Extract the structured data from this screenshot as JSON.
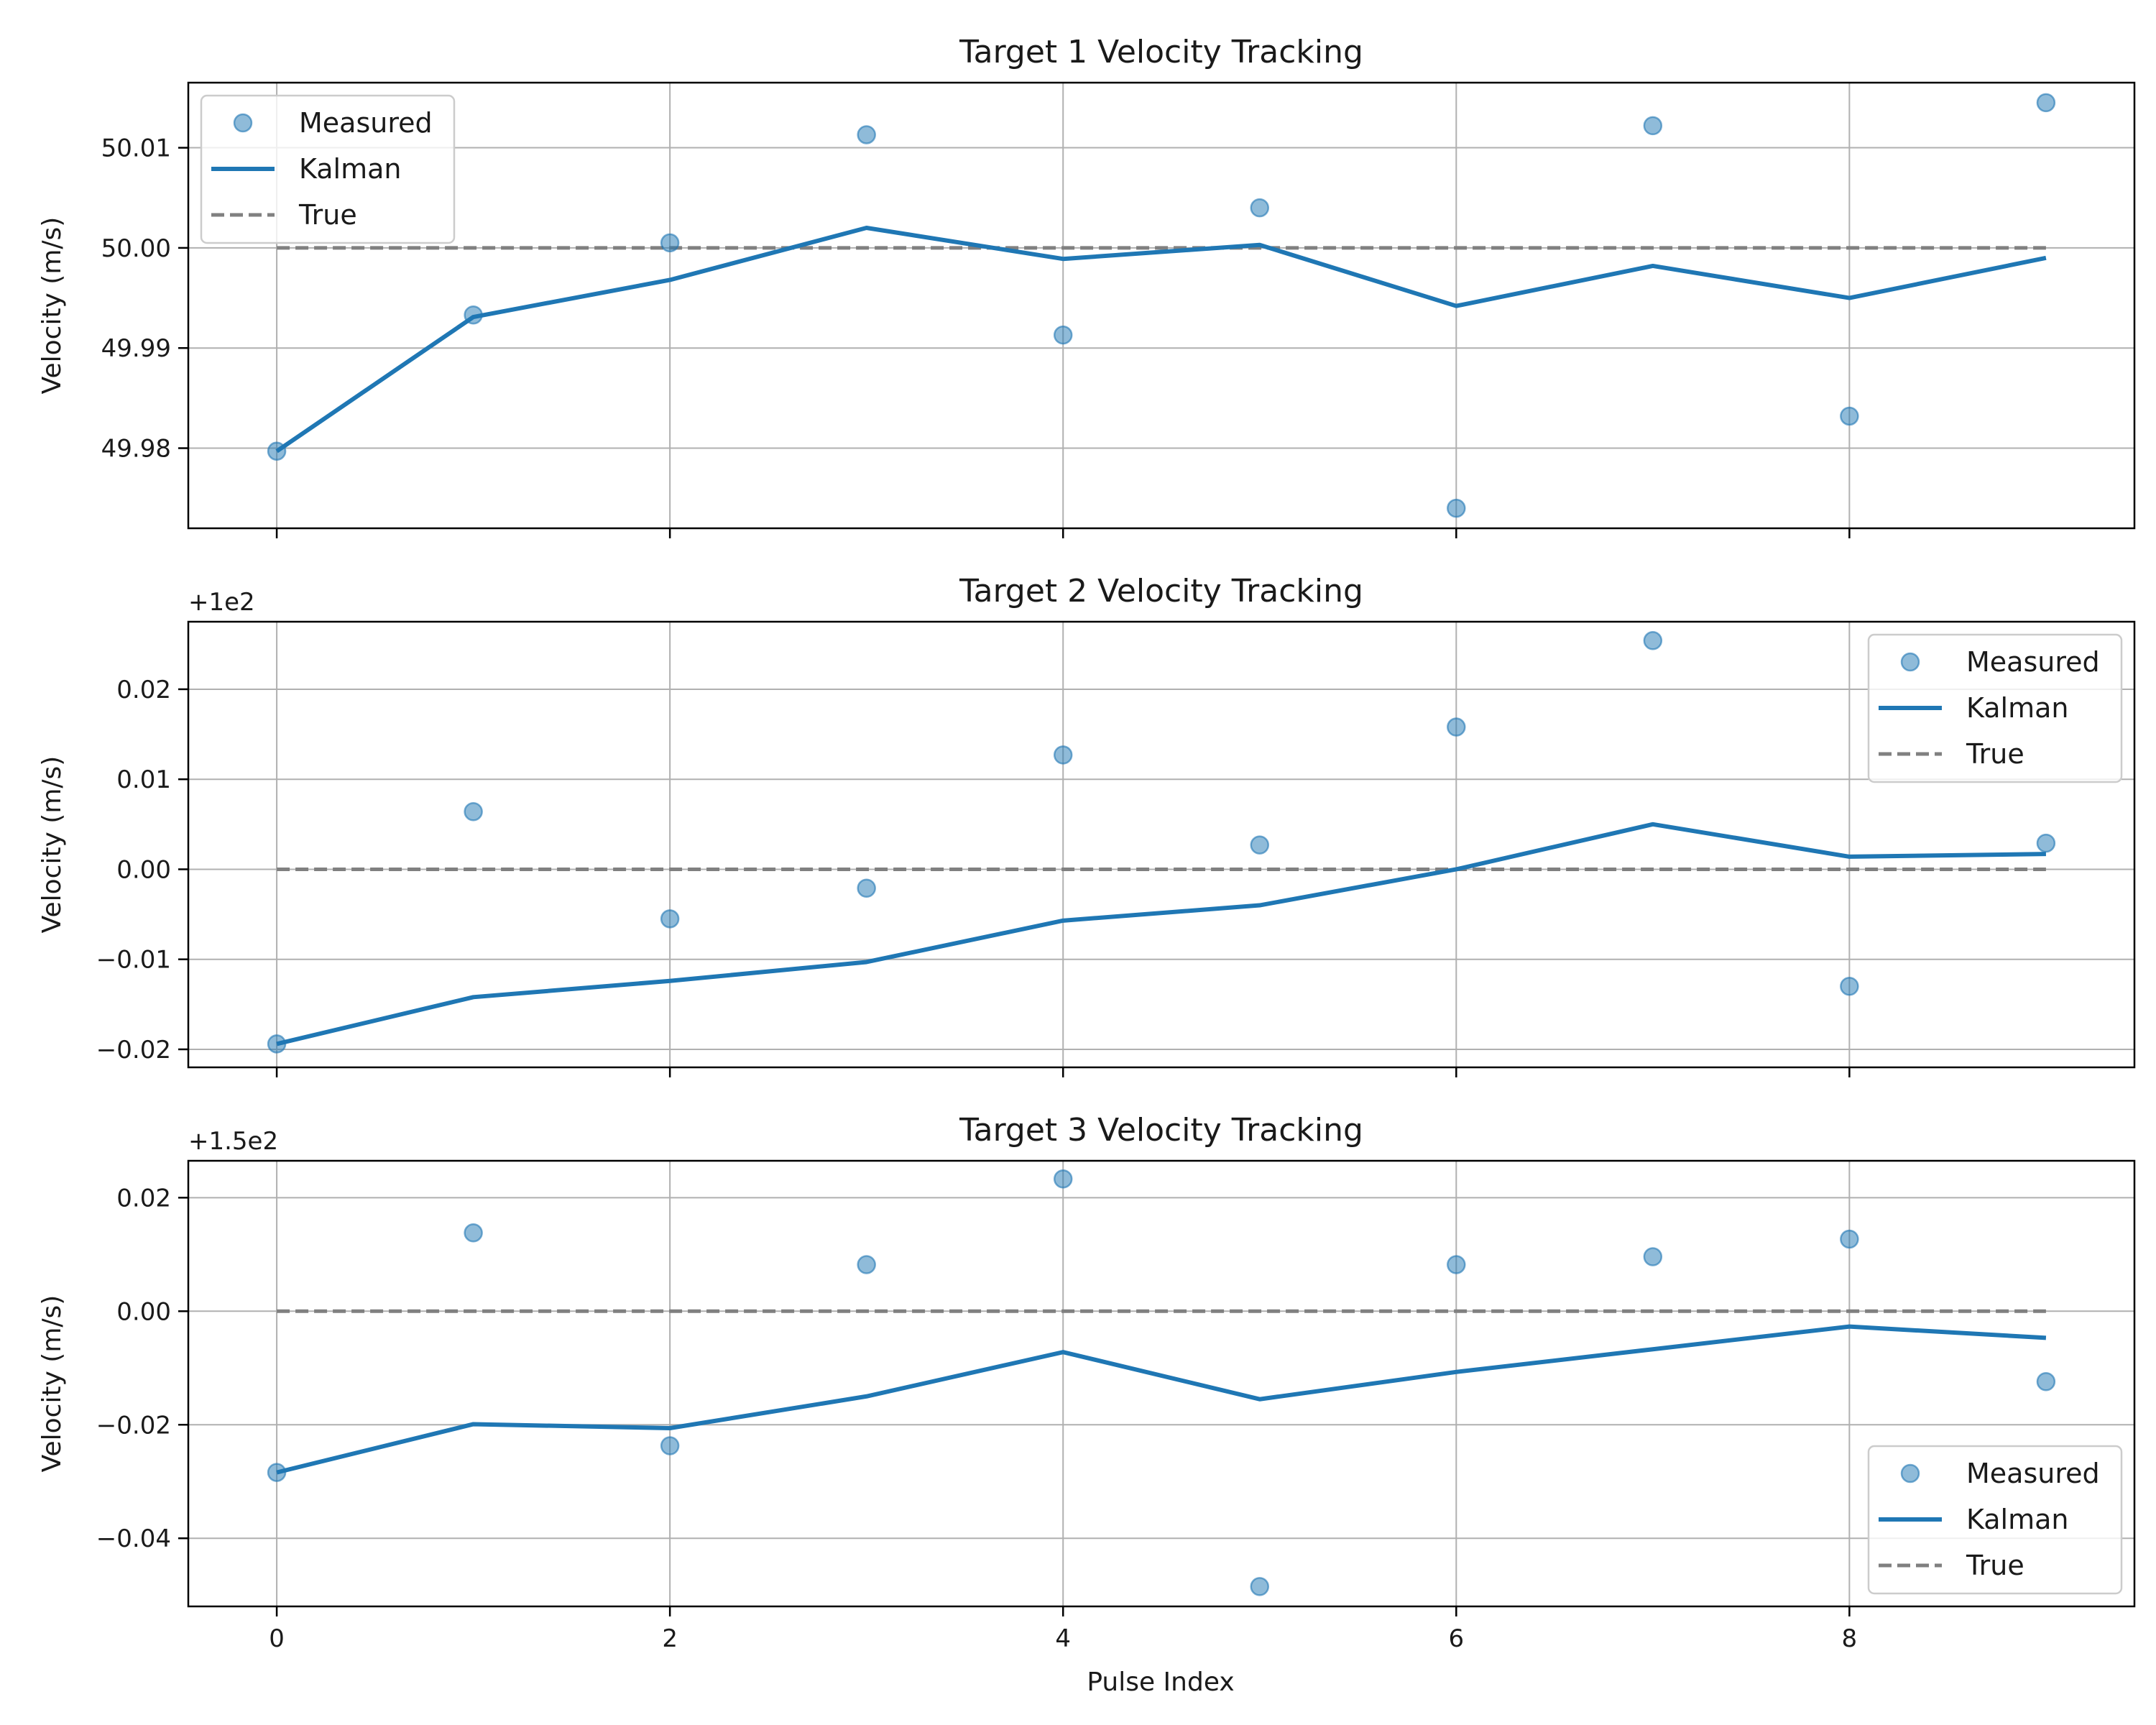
{
  "figure": {
    "xlabel": "Pulse Index"
  },
  "colors": {
    "measured": "#1f77b4",
    "kalman": "#1f77b4",
    "true": "#808080",
    "grid": "#b0b0b0"
  },
  "chart_data": [
    {
      "type": "line",
      "title": "Target 1 Velocity Tracking",
      "ylabel": "Velocity (m/s)",
      "offset_label": "",
      "offset": 0,
      "xlim": [
        -0.45,
        9.45
      ],
      "ylim": [
        49.972,
        50.0165
      ],
      "xticks": [
        0,
        2,
        4,
        6,
        8
      ],
      "xtick_labels": [
        "0",
        "2",
        "4",
        "6",
        "8"
      ],
      "yticks": [
        49.98,
        49.99,
        50.0,
        50.01
      ],
      "ytick_labels": [
        "49.98",
        "49.99",
        "50.00",
        "50.01"
      ],
      "show_xtick_labels": false,
      "grid": true,
      "legend": {
        "placement": "upper-left",
        "entries": [
          "Measured",
          "Kalman",
          "True"
        ]
      },
      "x": [
        0,
        1,
        2,
        3,
        4,
        5,
        6,
        7,
        8,
        9
      ],
      "series": [
        {
          "name": "Measured",
          "kind": "scatter",
          "values": [
            49.9797,
            49.9933,
            50.0005,
            50.0113,
            49.9913,
            50.004,
            49.974,
            50.0122,
            49.9832,
            50.0145
          ]
        },
        {
          "name": "Kalman",
          "kind": "line",
          "values": [
            49.9797,
            49.9931,
            49.9968,
            50.002,
            49.9989,
            50.0003,
            49.9942,
            49.9982,
            49.995,
            49.999
          ]
        },
        {
          "name": "True",
          "kind": "dashed",
          "values": [
            50,
            50,
            50,
            50,
            50,
            50,
            50,
            50,
            50,
            50
          ]
        }
      ]
    },
    {
      "type": "line",
      "title": "Target 2 Velocity Tracking",
      "ylabel": "Velocity (m/s)",
      "offset_label": "+1e2",
      "offset": 100,
      "xlim": [
        -0.45,
        9.45
      ],
      "ylim": [
        -0.022,
        0.0275
      ],
      "xticks": [
        0,
        2,
        4,
        6,
        8
      ],
      "xtick_labels": [
        "0",
        "2",
        "4",
        "6",
        "8"
      ],
      "yticks": [
        -0.02,
        -0.01,
        0.0,
        0.01,
        0.02
      ],
      "ytick_labels": [
        "−0.02",
        "−0.01",
        "0.00",
        "0.01",
        "0.02"
      ],
      "show_xtick_labels": false,
      "grid": true,
      "legend": {
        "placement": "upper-right",
        "entries": [
          "Measured",
          "Kalman",
          "True"
        ]
      },
      "x": [
        0,
        1,
        2,
        3,
        4,
        5,
        6,
        7,
        8,
        9
      ],
      "series": [
        {
          "name": "Measured",
          "kind": "scatter",
          "values": [
            -0.0194,
            0.0064,
            -0.0055,
            -0.0021,
            0.0127,
            0.0027,
            0.0158,
            0.0254,
            -0.013,
            0.0029
          ]
        },
        {
          "name": "Kalman",
          "kind": "line",
          "values": [
            -0.0194,
            -0.0142,
            -0.0124,
            -0.0103,
            -0.0057,
            -0.004,
            0.0,
            0.005,
            0.0014,
            0.0017
          ]
        },
        {
          "name": "True",
          "kind": "dashed",
          "values": [
            0,
            0,
            0,
            0,
            0,
            0,
            0,
            0,
            0,
            0
          ]
        }
      ]
    },
    {
      "type": "line",
      "title": "Target 3 Velocity Tracking",
      "ylabel": "Velocity (m/s)",
      "offset_label": "+1.5e2",
      "offset": 150,
      "xlim": [
        -0.45,
        9.45
      ],
      "ylim": [
        -0.052,
        0.0265
      ],
      "xticks": [
        0,
        2,
        4,
        6,
        8
      ],
      "xtick_labels": [
        "0",
        "2",
        "4",
        "6",
        "8"
      ],
      "yticks": [
        -0.04,
        -0.02,
        0.0,
        0.02
      ],
      "ytick_labels": [
        "−0.04",
        "−0.02",
        "0.00",
        "0.02"
      ],
      "show_xtick_labels": true,
      "grid": true,
      "legend": {
        "placement": "lower-right",
        "entries": [
          "Measured",
          "Kalman",
          "True"
        ]
      },
      "x": [
        0,
        1,
        2,
        3,
        4,
        5,
        6,
        7,
        8,
        9
      ],
      "series": [
        {
          "name": "Measured",
          "kind": "scatter",
          "values": [
            -0.0284,
            0.0138,
            -0.0237,
            0.0082,
            0.0233,
            -0.0485,
            0.0082,
            0.0096,
            0.0127,
            -0.0124
          ]
        },
        {
          "name": "Kalman",
          "kind": "line",
          "values": [
            -0.0284,
            -0.0199,
            -0.0206,
            -0.015,
            -0.0072,
            -0.0155,
            -0.0107,
            -0.0067,
            -0.0027,
            -0.0047
          ]
        },
        {
          "name": "True",
          "kind": "dashed",
          "values": [
            0,
            0,
            0,
            0,
            0,
            0,
            0,
            0,
            0,
            0
          ]
        }
      ]
    }
  ]
}
